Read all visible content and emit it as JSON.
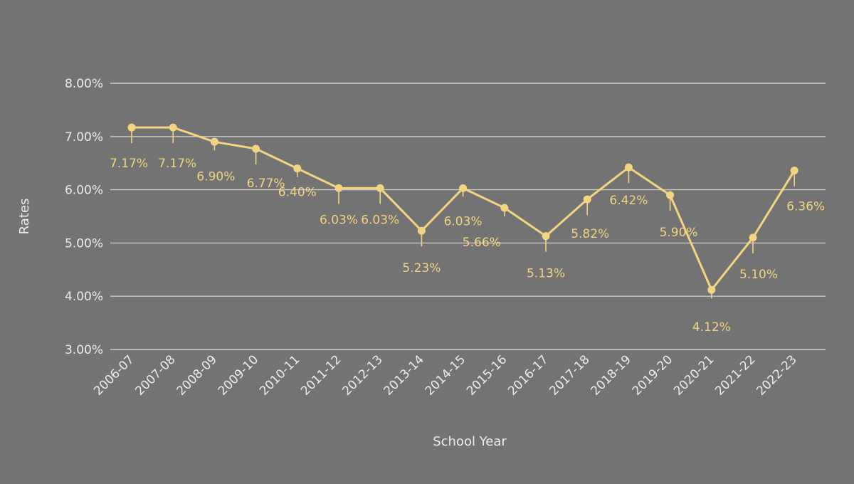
{
  "chart_data": {
    "type": "line",
    "xlabel": "School Year",
    "ylabel": "Rates",
    "ylim": [
      3,
      8
    ],
    "yticks": [
      "3.00%",
      "4.00%",
      "5.00%",
      "6.00%",
      "7.00%",
      "8.00%"
    ],
    "grid": true,
    "colors": {
      "background": "#737373",
      "series": "#f3d580",
      "grid": "#d2c9c4",
      "text": "#ececec"
    },
    "categories": [
      "2006-07",
      "2007-08",
      "2008-09",
      "2009-10",
      "2010-11",
      "2011-12",
      "2012-13",
      "2013-14",
      "2014-15",
      "2015-16",
      "2016-17",
      "2017-18",
      "2018-19",
      "2019-20",
      "2020-21",
      "2021-22",
      "2022-23"
    ],
    "series": [
      {
        "values": [
          7.17,
          7.17,
          6.9,
          6.77,
          6.4,
          6.03,
          6.03,
          5.23,
          6.03,
          5.66,
          5.13,
          5.82,
          6.42,
          5.9,
          4.12,
          5.1,
          6.36
        ],
        "labels": [
          "7.17%",
          "7.17%",
          "6.90%",
          "6.77%",
          "6.40%",
          "6.03%",
          "6.03%",
          "5.23%",
          "6.03%",
          "5.66%",
          "5.13%",
          "5.82%",
          "6.42%",
          "5.90%",
          "4.12%",
          "5.10%",
          "6.36%"
        ]
      }
    ]
  }
}
